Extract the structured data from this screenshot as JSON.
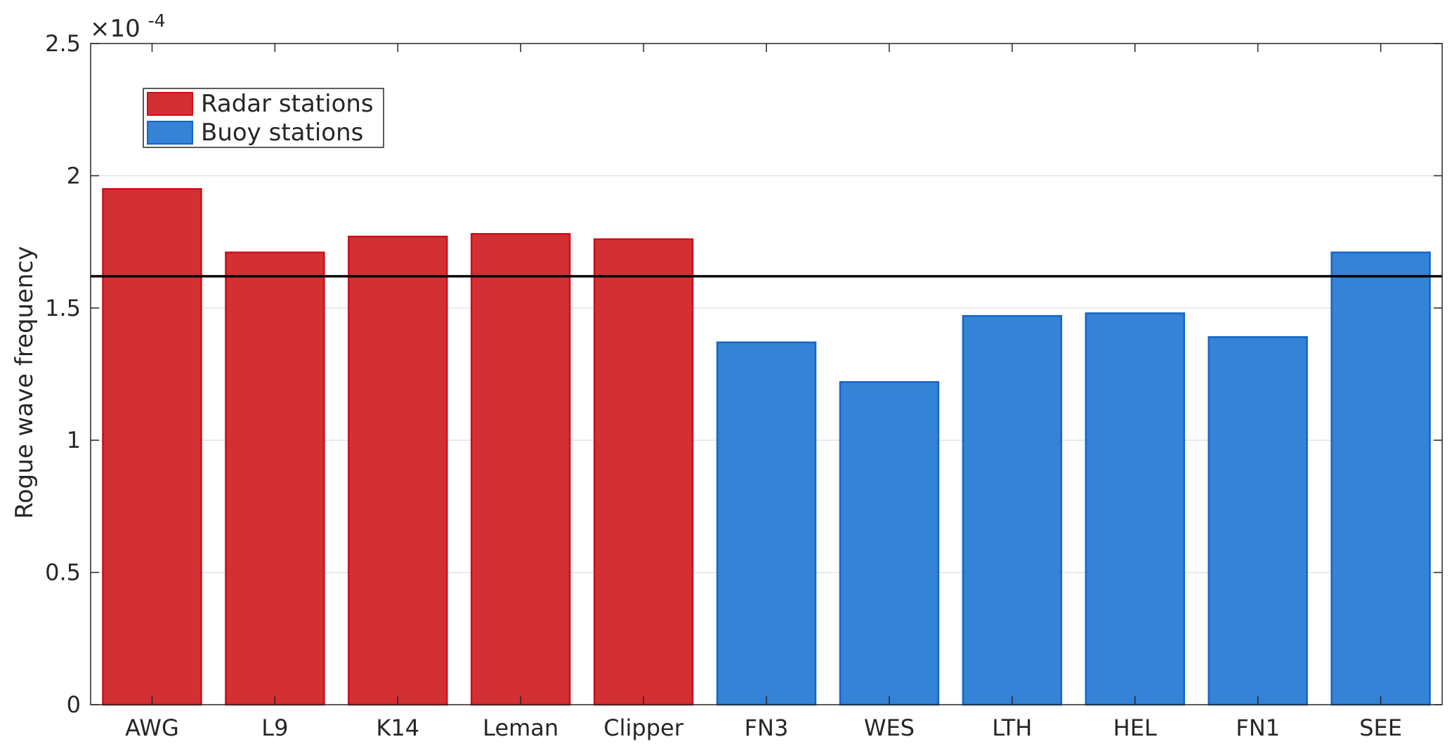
{
  "chart_data": {
    "type": "bar",
    "title": "",
    "xlabel": "",
    "ylabel": "Rogue wave frequency",
    "y_multiplier": "×10⁻⁴",
    "y_exponent_base": "×10",
    "y_exponent_power": "-4",
    "ylim": [
      0,
      2.5
    ],
    "yticks": [
      0,
      0.5,
      1,
      1.5,
      2,
      2.5
    ],
    "ytick_labels": [
      "0",
      "0.5",
      "1",
      "1.5",
      "2",
      "2.5"
    ],
    "grid": true,
    "categories": [
      "AWG",
      "L9",
      "K14",
      "Leman",
      "Clipper",
      "FN3",
      "WES",
      "LTH",
      "HEL",
      "FN1",
      "SEE"
    ],
    "values": [
      1.95,
      1.71,
      1.77,
      1.78,
      1.76,
      1.37,
      1.22,
      1.47,
      1.48,
      1.39,
      1.71
    ],
    "groups": [
      "radar",
      "radar",
      "radar",
      "radar",
      "radar",
      "buoy",
      "buoy",
      "buoy",
      "buoy",
      "buoy",
      "buoy"
    ],
    "series": [
      {
        "name": "Radar stations",
        "key": "radar",
        "fill": "#d33033",
        "edge": "#c8101a"
      },
      {
        "name": "Buoy stations",
        "key": "buoy",
        "fill": "#3483d6",
        "edge": "#1565c8"
      }
    ],
    "reference_line": {
      "value": 1.62,
      "color": "#000000"
    },
    "legend_position": "top-left"
  }
}
